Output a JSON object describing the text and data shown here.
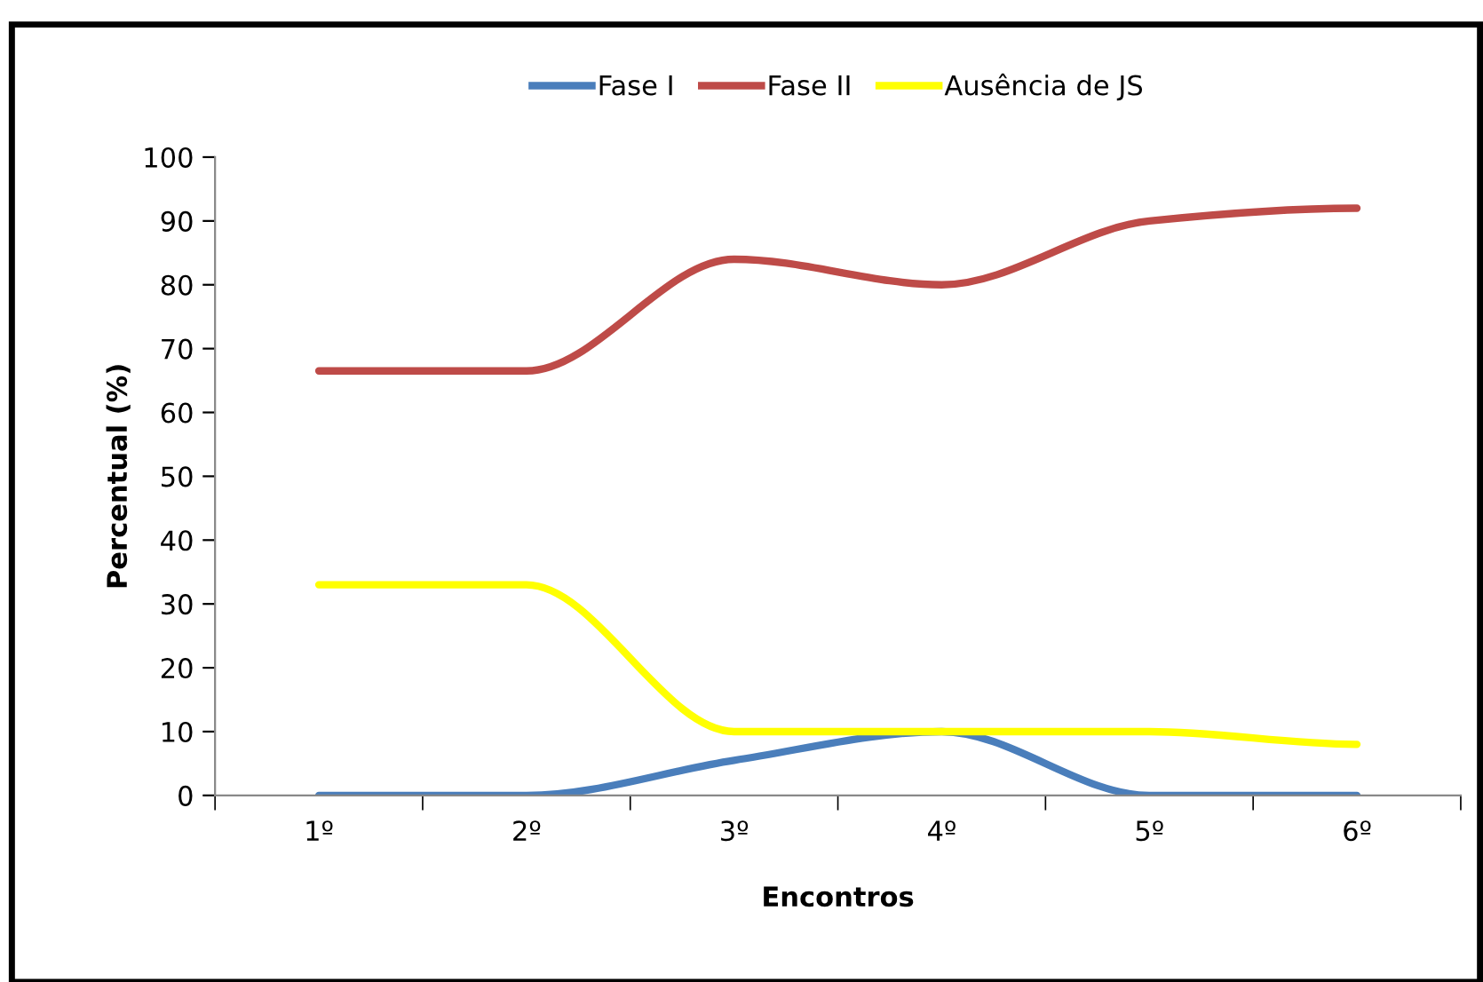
{
  "chart_data": {
    "type": "line",
    "xlabel": "Encontros",
    "ylabel": "Percentual (%)",
    "categories": [
      "1º",
      "2º",
      "3º",
      "4º",
      "5º",
      "6º"
    ],
    "series": [
      {
        "name": "Fase I",
        "color": "#4a7ebb",
        "values": [
          0,
          0,
          5.5,
          10,
          0,
          0
        ]
      },
      {
        "name": "Fase II",
        "color": "#be4b48",
        "values": [
          66.5,
          66.5,
          84,
          80,
          90,
          92
        ]
      },
      {
        "name": "Ausência de JS",
        "color": "#ffff00",
        "values": [
          33,
          33,
          10,
          10,
          10,
          8
        ]
      }
    ],
    "ylim": [
      0,
      100
    ],
    "yticks": [
      0,
      10,
      20,
      30,
      40,
      50,
      60,
      70,
      80,
      90,
      100
    ],
    "grid": false,
    "legend": "top",
    "marker": "none",
    "line_style": "solid"
  }
}
